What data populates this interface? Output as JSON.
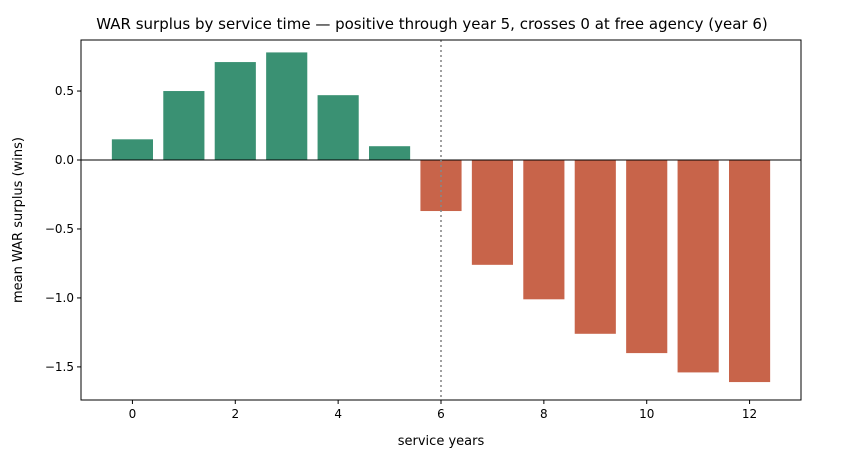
{
  "chart_data": {
    "type": "bar",
    "title": "WAR surplus by service time — positive through year 5, crosses 0 at free agency (year 6)",
    "xlabel": "service years",
    "ylabel": "mean WAR surplus (wins)",
    "x": [
      0,
      1,
      2,
      3,
      4,
      5,
      6,
      7,
      8,
      9,
      10,
      11,
      12
    ],
    "values": [
      0.15,
      0.5,
      0.71,
      0.78,
      0.47,
      0.1,
      -0.37,
      -0.76,
      -1.01,
      -1.26,
      -1.4,
      -1.54,
      -1.61
    ],
    "xlim": [
      -1,
      13
    ],
    "ylim": [
      -1.74,
      0.87
    ],
    "xticks": [
      0,
      2,
      4,
      6,
      8,
      10,
      12
    ],
    "xtick_labels": [
      "0",
      "2",
      "4",
      "6",
      "8",
      "10",
      "12"
    ],
    "yticks": [
      0.5,
      0.0,
      -0.5,
      -1.0,
      -1.5
    ],
    "ytick_labels": [
      "0.5",
      "0.0",
      "−0.5",
      "−1.0",
      "−1.5"
    ],
    "positive_color": "#3a9173",
    "negative_color": "#c8644a",
    "reference_line": {
      "x": 6,
      "style": "dotted",
      "color": "#888888"
    },
    "zero_line": {
      "y": 0,
      "color": "#000000"
    },
    "grid": false,
    "legend": "none"
  }
}
